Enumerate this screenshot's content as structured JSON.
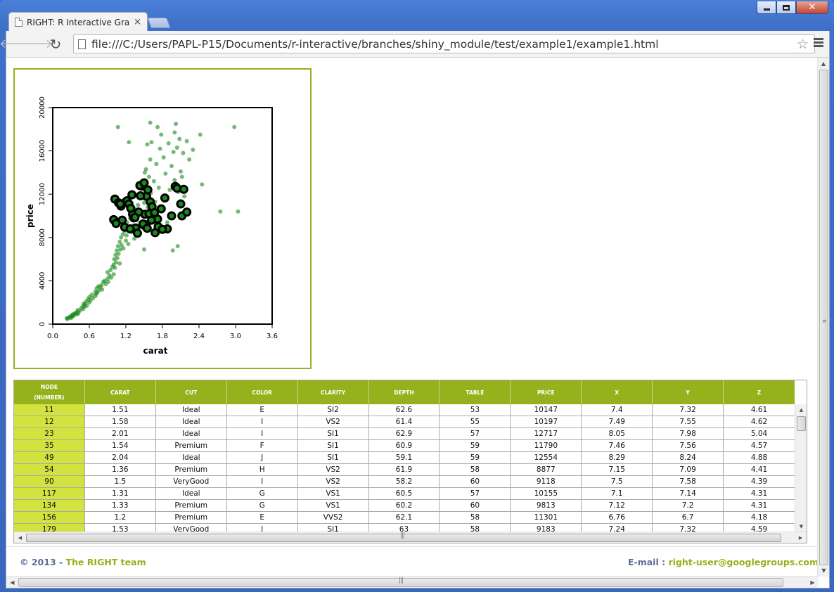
{
  "browser": {
    "tab_title": "RIGHT: R Interactive Graphics",
    "tab_close": "×",
    "url": "file:///C:/Users/PAPL-P15/Documents/r-interactive/branches/shiny_module/test/example1/example1.html"
  },
  "colors": {
    "accent": "#95b11b",
    "node_cell": "#d2e33f",
    "point_fill": "#1a8a1a",
    "selected_ring": "#000000",
    "footer_text": "#5b6e98"
  },
  "chart_data": {
    "type": "scatter",
    "xlabel": "carat",
    "ylabel": "price",
    "xlim": [
      0,
      3.6
    ],
    "ylim": [
      0,
      20000
    ],
    "xticks": [
      "0.0",
      "0.6",
      "1.2",
      "1.8",
      "2.4",
      "3.0",
      "3.6"
    ],
    "yticks": [
      "0",
      "4000",
      "8000",
      "12000",
      "16000",
      "20000"
    ],
    "grid": false,
    "series": [
      {
        "role": "all points",
        "points": [
          [
            0.23,
            550
          ],
          [
            0.24,
            480
          ],
          [
            0.26,
            610
          ],
          [
            0.28,
            650
          ],
          [
            0.3,
            720
          ],
          [
            0.3,
            560
          ],
          [
            0.31,
            800
          ],
          [
            0.32,
            690
          ],
          [
            0.33,
            900
          ],
          [
            0.34,
            760
          ],
          [
            0.35,
            850
          ],
          [
            0.36,
            980
          ],
          [
            0.38,
            1050
          ],
          [
            0.4,
            1100
          ],
          [
            0.4,
            900
          ],
          [
            0.41,
            1300
          ],
          [
            0.42,
            1000
          ],
          [
            0.45,
            1250
          ],
          [
            0.47,
            1500
          ],
          [
            0.5,
            1400
          ],
          [
            0.5,
            1700
          ],
          [
            0.51,
            1900
          ],
          [
            0.52,
            1600
          ],
          [
            0.53,
            1850
          ],
          [
            0.55,
            2100
          ],
          [
            0.56,
            1700
          ],
          [
            0.58,
            2300
          ],
          [
            0.6,
            2000
          ],
          [
            0.6,
            2500
          ],
          [
            0.62,
            2200
          ],
          [
            0.64,
            2700
          ],
          [
            0.66,
            2400
          ],
          [
            0.7,
            2600
          ],
          [
            0.7,
            3000
          ],
          [
            0.71,
            2800
          ],
          [
            0.72,
            3300
          ],
          [
            0.73,
            2900
          ],
          [
            0.75,
            3500
          ],
          [
            0.76,
            3100
          ],
          [
            0.78,
            3400
          ],
          [
            0.8,
            3600
          ],
          [
            0.81,
            3200
          ],
          [
            0.83,
            3900
          ],
          [
            0.85,
            4000
          ],
          [
            0.87,
            3700
          ],
          [
            0.9,
            4200
          ],
          [
            0.9,
            4800
          ],
          [
            0.91,
            3900
          ],
          [
            0.93,
            4500
          ],
          [
            0.95,
            5000
          ],
          [
            0.96,
            4300
          ],
          [
            0.98,
            5300
          ],
          [
            1.0,
            4600
          ],
          [
            1.0,
            5500
          ],
          [
            1.01,
            6000
          ],
          [
            1.02,
            5200
          ],
          [
            1.03,
            6400
          ],
          [
            1.04,
            5700
          ],
          [
            1.05,
            6800
          ],
          [
            1.06,
            6100
          ],
          [
            1.07,
            7200
          ],
          [
            1.08,
            6500
          ],
          [
            1.1,
            7600
          ],
          [
            1.1,
            5600
          ],
          [
            1.11,
            6900
          ],
          [
            1.12,
            8000
          ],
          [
            1.13,
            7300
          ],
          [
            1.15,
            8300
          ],
          [
            1.16,
            7000
          ],
          [
            1.18,
            8600
          ],
          [
            1.2,
            7700
          ],
          [
            1.2,
            9000
          ],
          [
            1.21,
            8200
          ],
          [
            1.22,
            9400
          ],
          [
            1.24,
            7400
          ],
          [
            1.25,
            8800
          ],
          [
            1.27,
            9800
          ],
          [
            1.3,
            8500
          ],
          [
            1.3,
            10200
          ],
          [
            1.32,
            9100
          ],
          [
            1.34,
            7900
          ],
          [
            1.36,
            10600
          ],
          [
            1.38,
            9600
          ],
          [
            1.4,
            11000
          ],
          [
            1.4,
            8800
          ],
          [
            1.42,
            10400
          ],
          [
            1.45,
            12000
          ],
          [
            1.47,
            9300
          ],
          [
            1.5,
            13000
          ],
          [
            1.5,
            11200
          ],
          [
            1.51,
            14000
          ],
          [
            1.52,
            12500
          ],
          [
            1.53,
            14300
          ],
          [
            1.55,
            16600
          ],
          [
            1.56,
            10800
          ],
          [
            1.58,
            13600
          ],
          [
            1.6,
            15200
          ],
          [
            1.61,
            12100
          ],
          [
            1.62,
            16800
          ],
          [
            1.64,
            9700
          ],
          [
            1.66,
            13200
          ],
          [
            1.68,
            11300
          ],
          [
            1.7,
            10100
          ],
          [
            1.7,
            14800
          ],
          [
            1.72,
            18200
          ],
          [
            1.74,
            12600
          ],
          [
            1.76,
            16200
          ],
          [
            1.78,
            17500
          ],
          [
            1.8,
            11700
          ],
          [
            1.82,
            15400
          ],
          [
            1.85,
            13900
          ],
          [
            1.88,
            9400
          ],
          [
            1.9,
            16700
          ],
          [
            1.92,
            12400
          ],
          [
            1.95,
            14600
          ],
          [
            1.98,
            15900
          ],
          [
            2.0,
            13300
          ],
          [
            2.0,
            17700
          ],
          [
            2.02,
            18500
          ],
          [
            2.04,
            16300
          ],
          [
            2.06,
            12200
          ],
          [
            2.08,
            17100
          ],
          [
            2.1,
            14100
          ],
          [
            2.12,
            13600
          ],
          [
            2.14,
            15800
          ],
          [
            2.16,
            11800
          ],
          [
            2.2,
            16900
          ],
          [
            2.24,
            15200
          ],
          [
            2.3,
            16100
          ],
          [
            2.42,
            17500
          ],
          [
            2.45,
            12900
          ],
          [
            2.75,
            10400
          ],
          [
            2.98,
            18200
          ],
          [
            3.04,
            10400
          ],
          [
            1.07,
            18200
          ],
          [
            1.25,
            16800
          ],
          [
            1.6,
            18600
          ],
          [
            2.05,
            7200
          ],
          [
            1.97,
            6800
          ],
          [
            1.5,
            6900
          ]
        ]
      },
      {
        "role": "selected points (black ring)",
        "points": [
          [
            1.51,
            10147
          ],
          [
            1.58,
            10197
          ],
          [
            2.01,
            12717
          ],
          [
            1.54,
            11790
          ],
          [
            2.04,
            12554
          ],
          [
            1.36,
            8877
          ],
          [
            1.5,
            9118
          ],
          [
            1.31,
            10155
          ],
          [
            1.33,
            9813
          ],
          [
            1.2,
            11301
          ],
          [
            1.53,
            9183
          ],
          [
            1.02,
            11550
          ],
          [
            1.08,
            11200
          ],
          [
            1.12,
            10900
          ],
          [
            1.22,
            11400
          ],
          [
            1.25,
            11100
          ],
          [
            1.28,
            10700
          ],
          [
            1.41,
            10350
          ],
          [
            1.44,
            11850
          ],
          [
            1.46,
            12750
          ],
          [
            1.56,
            12400
          ],
          [
            1.6,
            11300
          ],
          [
            1.63,
            10850
          ],
          [
            1.67,
            10300
          ],
          [
            1.72,
            9700
          ],
          [
            1.78,
            10650
          ],
          [
            1.84,
            11650
          ],
          [
            1.88,
            8800
          ],
          [
            1.95,
            10000
          ],
          [
            2.12,
            10000
          ],
          [
            2.2,
            10350
          ],
          [
            2.1,
            11100
          ],
          [
            2.15,
            12450
          ],
          [
            1.0,
            9650
          ],
          [
            1.04,
            9300
          ],
          [
            1.14,
            9600
          ],
          [
            1.18,
            8950
          ],
          [
            1.27,
            8800
          ],
          [
            1.39,
            8400
          ],
          [
            1.48,
            9250
          ],
          [
            1.55,
            8850
          ],
          [
            1.62,
            9600
          ],
          [
            1.68,
            8450
          ],
          [
            1.73,
            9000
          ],
          [
            1.8,
            8750
          ],
          [
            1.43,
            12800
          ],
          [
            1.5,
            13050
          ],
          [
            1.35,
            9850
          ],
          [
            1.3,
            11950
          ],
          [
            1.11,
            11100
          ]
        ]
      }
    ]
  },
  "table": {
    "columns": [
      {
        "line1": "NODE",
        "line2": "(NUMBER)"
      },
      {
        "line1": "CARAT",
        "line2": ""
      },
      {
        "line1": "CUT",
        "line2": ""
      },
      {
        "line1": "COLOR",
        "line2": ""
      },
      {
        "line1": "CLARITY",
        "line2": ""
      },
      {
        "line1": "DEPTH",
        "line2": ""
      },
      {
        "line1": "TABLE",
        "line2": ""
      },
      {
        "line1": "PRICE",
        "line2": ""
      },
      {
        "line1": "X",
        "line2": ""
      },
      {
        "line1": "Y",
        "line2": ""
      },
      {
        "line1": "Z",
        "line2": ""
      }
    ],
    "rows": [
      [
        "11",
        "1.51",
        "Ideal",
        "E",
        "SI2",
        "62.6",
        "53",
        "10147",
        "7.4",
        "7.32",
        "4.61"
      ],
      [
        "12",
        "1.58",
        "Ideal",
        "I",
        "VS2",
        "61.4",
        "55",
        "10197",
        "7.49",
        "7.55",
        "4.62"
      ],
      [
        "23",
        "2.01",
        "Ideal",
        "I",
        "SI1",
        "62.9",
        "57",
        "12717",
        "8.05",
        "7.98",
        "5.04"
      ],
      [
        "35",
        "1.54",
        "Premium",
        "F",
        "SI1",
        "60.9",
        "59",
        "11790",
        "7.46",
        "7.56",
        "4.57"
      ],
      [
        "49",
        "2.04",
        "Ideal",
        "J",
        "SI1",
        "59.1",
        "59",
        "12554",
        "8.29",
        "8.24",
        "4.88"
      ],
      [
        "54",
        "1.36",
        "Premium",
        "H",
        "VS2",
        "61.9",
        "58",
        "8877",
        "7.15",
        "7.09",
        "4.41"
      ],
      [
        "90",
        "1.5",
        "VeryGood",
        "I",
        "VS2",
        "58.2",
        "60",
        "9118",
        "7.5",
        "7.58",
        "4.39"
      ],
      [
        "117",
        "1.31",
        "Ideal",
        "G",
        "VS1",
        "60.5",
        "57",
        "10155",
        "7.1",
        "7.14",
        "4.31"
      ],
      [
        "134",
        "1.33",
        "Premium",
        "G",
        "VS1",
        "60.2",
        "60",
        "9813",
        "7.12",
        "7.2",
        "4.31"
      ],
      [
        "156",
        "1.2",
        "Premium",
        "E",
        "VVS2",
        "62.1",
        "58",
        "11301",
        "6.76",
        "6.7",
        "4.18"
      ],
      [
        "179",
        "1.53",
        "VeryGood",
        "I",
        "SI1",
        "63",
        "58",
        "9183",
        "7.24",
        "7.32",
        "4.59"
      ]
    ]
  },
  "footer": {
    "copyright": "© 2013 - ",
    "team": "The RIGHT team",
    "email_label": "E-mail : ",
    "email": "right-user@googlegroups.com"
  }
}
